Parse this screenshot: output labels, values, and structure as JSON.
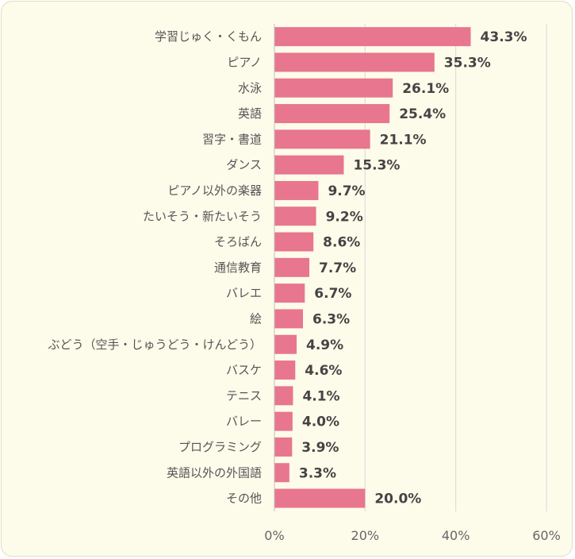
{
  "chart_data": {
    "type": "bar",
    "orientation": "horizontal",
    "categories": [
      "学習じゅく・くもん",
      "ピアノ",
      "水泳",
      "英語",
      "習字・書道",
      "ダンス",
      "ピアノ以外の楽器",
      "たいそう・新たいそう",
      "そろばん",
      "通信教育",
      "バレエ",
      "絵",
      "ぶどう（空手・じゅうどう・けんどう）",
      "バスケ",
      "テニス",
      "バレー",
      "プログラミング",
      "英語以外の外国語",
      "その他"
    ],
    "values": [
      43.3,
      35.3,
      26.1,
      25.4,
      21.1,
      15.3,
      9.7,
      9.2,
      8.6,
      7.7,
      6.7,
      6.3,
      4.9,
      4.6,
      4.1,
      4.0,
      3.9,
      3.3,
      20.0
    ],
    "value_labels": [
      "43.3%",
      "35.3%",
      "26.1%",
      "25.4%",
      "21.1%",
      "15.3%",
      "9.7%",
      "9.2%",
      "8.6%",
      "7.7%",
      "6.7%",
      "6.3%",
      "4.9%",
      "4.6%",
      "4.1%",
      "4.0%",
      "3.9%",
      "3.3%",
      "20.0%"
    ],
    "xlim": [
      0,
      60
    ],
    "x_ticks": [
      "0%",
      "20%",
      "40%",
      "60%"
    ],
    "grid": true,
    "legend": "none",
    "colors": {
      "bar": "#e8768e",
      "background": "#fdfbea",
      "grid": "#d9d9d9",
      "value_text": "#444444",
      "category_text": "#555555"
    }
  }
}
